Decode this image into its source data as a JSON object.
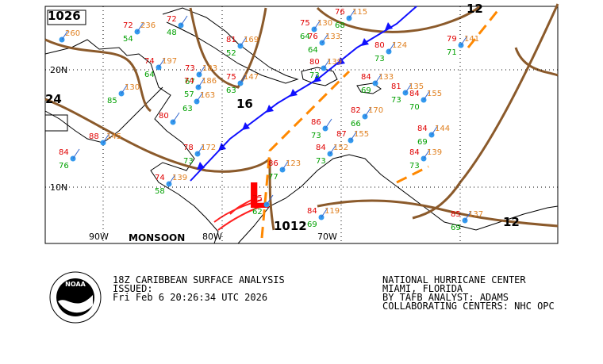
{
  "map": {
    "pressure_labels": [
      "1026",
      "12",
      "24",
      "16",
      "1012",
      "12"
    ],
    "low_symbol": "L",
    "lat_labels": [
      "20N",
      "10N"
    ],
    "lon_labels": [
      "90W",
      "80W",
      "70W"
    ],
    "feature_label": "MONSOON",
    "stations": [
      {
        "temp": 72,
        "dew": 54,
        "pres": 236
      },
      {
        "temp": 72,
        "dew": 48
      },
      {
        "temp": 74,
        "dew": 64,
        "pres": 197
      },
      {
        "temp": 73,
        "dew": 67,
        "pres": 183
      },
      {
        "temp": 74,
        "dew": 57,
        "pres": 186
      },
      {
        "dew": 63,
        "pres": 163
      },
      {
        "temp": 75,
        "dew": 63,
        "pres": 147
      },
      {
        "temp": 81,
        "dew": 52,
        "pres": 169
      },
      {
        "temp": 75,
        "dew": 64,
        "pres": 130
      },
      {
        "temp": 76,
        "dew": 64,
        "pres": 133
      },
      {
        "temp": 80,
        "dew": 73,
        "pres": 139
      },
      {
        "temp": 76,
        "dew": 68,
        "pres": 115
      },
      {
        "temp": 80,
        "dew": 73,
        "pres": 124
      },
      {
        "temp": 84,
        "dew": 69,
        "pres": 133
      },
      {
        "temp": 81,
        "dew": 73,
        "pres": 135
      },
      {
        "temp": 82,
        "dew": 66,
        "pres": 170
      },
      {
        "temp": 86,
        "dew": 73
      },
      {
        "temp": 87,
        "pres": 155
      },
      {
        "temp": 84,
        "dew": 73,
        "pres": 152
      },
      {
        "temp": 84,
        "dew": 70,
        "pres": 155
      },
      {
        "temp": 84,
        "dew": 69,
        "pres": 144
      },
      {
        "temp": 84,
        "dew": 73,
        "pres": 139
      },
      {
        "temp": 79,
        "dew": 71,
        "pres": 141
      },
      {
        "temp": 85,
        "dew": 69,
        "pres": 137
      },
      {
        "temp": 84,
        "dew": 69,
        "pres": 119
      },
      {
        "temp": 78,
        "dew": 73,
        "pres": 172
      },
      {
        "temp": 74,
        "dew": 58,
        "pres": 139
      },
      {
        "temp": 75,
        "dew": 62
      },
      {
        "temp": 86,
        "dew": 77,
        "pres": 123
      },
      {
        "temp": 84,
        "dew": 76
      },
      {
        "temp": 88,
        "pres": 145
      },
      {
        "dew": 85,
        "pres": 130
      },
      {
        "temp": 80
      },
      {
        "pres": 260
      }
    ]
  },
  "footer": {
    "logo": "NOAA",
    "left": [
      "18Z CARIBBEAN SURFACE ANALYSIS",
      "ISSUED:",
      " Fri Feb 6 20:26:34 UTC 2026"
    ],
    "right": [
      "NATIONAL HURRICANE CENTER",
      "MIAMI, FLORIDA",
      "BY TAFB ANALYST: ADAMS",
      "COLLABORATING CENTERS: NHC OPC"
    ]
  }
}
